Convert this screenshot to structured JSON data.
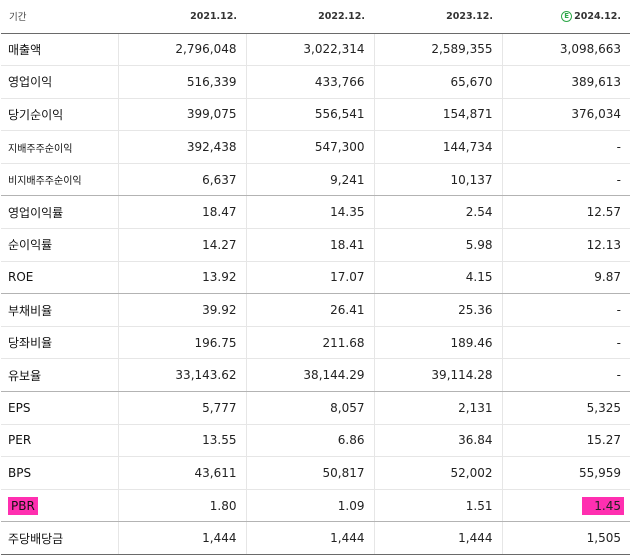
{
  "header": {
    "label": "기간",
    "periods": [
      "2021.12.",
      "2022.12.",
      "2023.12.",
      "2024.12."
    ],
    "estimate_mark": "E"
  },
  "rows": [
    {
      "label": "매출액",
      "values": [
        "2,796,048",
        "3,022,314",
        "2,589,355",
        "3,098,663"
      ]
    },
    {
      "label": "영업이익",
      "values": [
        "516,339",
        "433,766",
        "65,670",
        "389,613"
      ]
    },
    {
      "label": "당기순이익",
      "values": [
        "399,075",
        "556,541",
        "154,871",
        "376,034"
      ]
    },
    {
      "label": "지배주주순이익",
      "values": [
        "392,438",
        "547,300",
        "144,734",
        "-"
      ]
    },
    {
      "label": "비지배주주순이익",
      "values": [
        "6,637",
        "9,241",
        "10,137",
        "-"
      ]
    },
    {
      "label": "영업이익률",
      "values": [
        "18.47",
        "14.35",
        "2.54",
        "12.57"
      ]
    },
    {
      "label": "순이익률",
      "values": [
        "14.27",
        "18.41",
        "5.98",
        "12.13"
      ]
    },
    {
      "label": "ROE",
      "values": [
        "13.92",
        "17.07",
        "4.15",
        "9.87"
      ]
    },
    {
      "label": "부채비율",
      "values": [
        "39.92",
        "26.41",
        "25.36",
        "-"
      ]
    },
    {
      "label": "당좌비율",
      "values": [
        "196.75",
        "211.68",
        "189.46",
        "-"
      ]
    },
    {
      "label": "유보율",
      "values": [
        "33,143.62",
        "38,144.29",
        "39,114.28",
        "-"
      ]
    },
    {
      "label": "EPS",
      "values": [
        "5,777",
        "8,057",
        "2,131",
        "5,325"
      ]
    },
    {
      "label": "PER",
      "values": [
        "13.55",
        "6.86",
        "36.84",
        "15.27"
      ]
    },
    {
      "label": "BPS",
      "values": [
        "43,611",
        "50,817",
        "52,002",
        "55,959"
      ]
    },
    {
      "label": "PBR",
      "values": [
        "1.80",
        "1.09",
        "1.51",
        "1.45"
      ]
    },
    {
      "label": "주당배당금",
      "values": [
        "1,444",
        "1,444",
        "1,444",
        "1,505"
      ]
    }
  ],
  "highlight_color": "#ff2fb0",
  "estimate_color": "#2fa84a"
}
